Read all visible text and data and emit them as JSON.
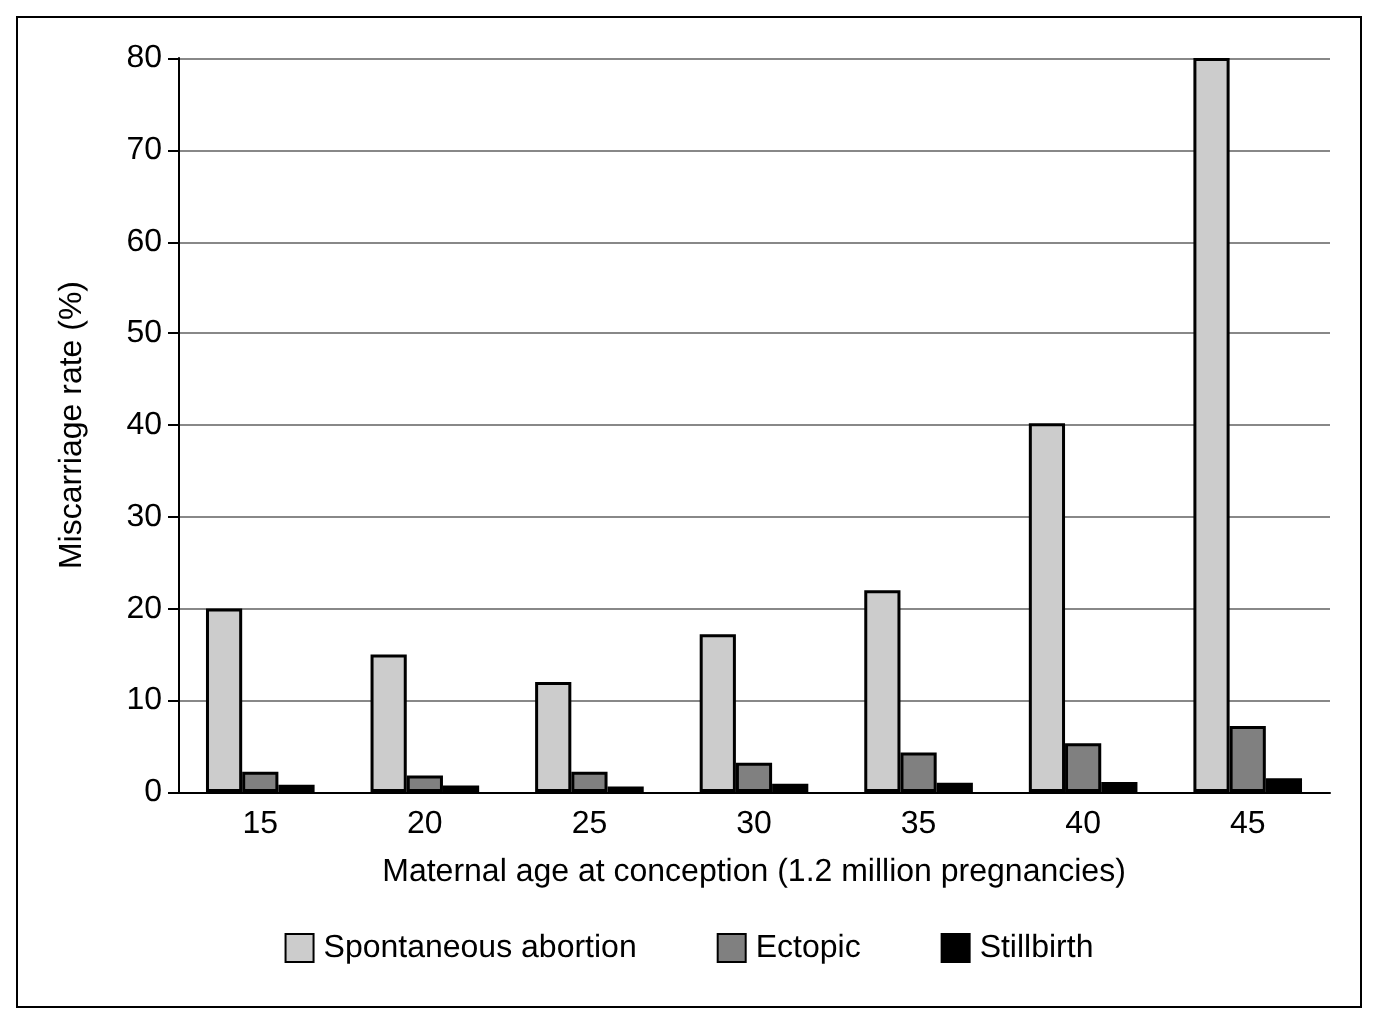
{
  "chart_data": {
    "type": "bar",
    "xlabel": "Maternal age at conception (1.2 million pregnancies)",
    "ylabel": "Miscarriage rate (%)",
    "categories": [
      "15",
      "20",
      "25",
      "30",
      "35",
      "40",
      "45"
    ],
    "series": [
      {
        "name": "Spontaneous abortion",
        "color": "#cccccc",
        "values": [
          20,
          15,
          12,
          17.2,
          22,
          40.2,
          80
        ]
      },
      {
        "name": "Ectopic",
        "color": "#808080",
        "values": [
          2.2,
          1.8,
          2.2,
          3.2,
          4.3,
          5.3,
          7.2
        ]
      },
      {
        "name": "Stillbirth",
        "color": "#000000",
        "values": [
          0.8,
          0.7,
          0.6,
          0.9,
          1.0,
          1.1,
          1.5
        ]
      }
    ],
    "ylim": [
      0,
      80
    ],
    "yticks": [
      0,
      10,
      20,
      30,
      40,
      50,
      60,
      70,
      80
    ],
    "grid": "y",
    "legend": "bottom"
  }
}
